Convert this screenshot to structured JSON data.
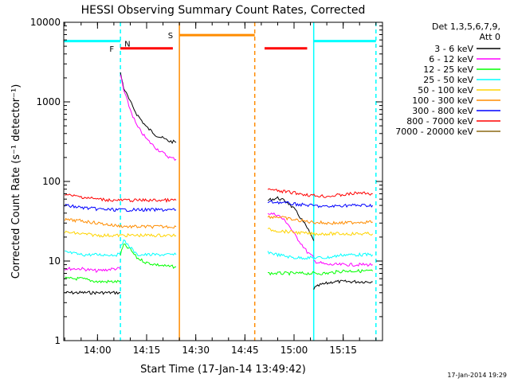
{
  "chart_data": {
    "type": "line",
    "title": "HESSI Observing Summary Count Rates, Corrected",
    "xlabel": "Start Time (17-Jan-14 13:49:42)",
    "ylabel": "Corrected Count Rate (s⁻¹ detector⁻¹)",
    "y_scale": "log",
    "ylim": [
      1,
      10000
    ],
    "xlim": [
      "13:49:42",
      "15:27:00"
    ],
    "x_ticks": [
      "14:00",
      "14:15",
      "14:30",
      "14:45",
      "15:00",
      "15:15"
    ],
    "y_ticks": [
      "1",
      "10",
      "100",
      "1000",
      "10000"
    ],
    "legend_header": [
      "Det 1,3,5,6,7,9,",
      "Att 0"
    ],
    "legend_position": "right",
    "timestamp": "17-Jan-2014 19:29",
    "series": [
      {
        "name": "3 - 6 keV",
        "color": "#000000",
        "segments": [
          {
            "x": [
              "13:50",
              "13:55",
              "14:00",
              "14:05",
              "14:07"
            ],
            "y": [
              4,
              4,
              4,
              4,
              4
            ]
          },
          {
            "x": [
              "14:07",
              "14:08",
              "14:10",
              "14:12",
              "14:15",
              "14:18",
              "14:22",
              "14:24"
            ],
            "y": [
              2300,
              1500,
              1000,
              700,
              480,
              380,
              320,
              310
            ]
          },
          {
            "x": [
              "14:52",
              "14:55",
              "14:58",
              "15:00",
              "15:02",
              "15:04",
              "15:06"
            ],
            "y": [
              58,
              62,
              55,
              45,
              35,
              26,
              18
            ]
          },
          {
            "x": [
              "15:06",
              "15:08",
              "15:12",
              "15:16",
              "15:20",
              "15:24"
            ],
            "y": [
              4.5,
              5,
              5.5,
              5.5,
              5.5,
              5.5
            ]
          }
        ]
      },
      {
        "name": "6 - 12 keV",
        "color": "#ff00ff",
        "segments": [
          {
            "x": [
              "13:50",
              "13:55",
              "14:00",
              "14:05",
              "14:07"
            ],
            "y": [
              8,
              8,
              7.5,
              8,
              8
            ]
          },
          {
            "x": [
              "14:07",
              "14:08",
              "14:10",
              "14:12",
              "14:15",
              "14:18",
              "14:22",
              "14:24"
            ],
            "y": [
              2200,
              1400,
              800,
              500,
              340,
              260,
              200,
              190
            ]
          },
          {
            "x": [
              "14:52",
              "14:55",
              "14:58",
              "15:00",
              "15:02",
              "15:04",
              "15:06"
            ],
            "y": [
              40,
              38,
              30,
              22,
              17,
              13,
              11
            ]
          },
          {
            "x": [
              "15:06",
              "15:10",
              "15:15",
              "15:20",
              "15:24"
            ],
            "y": [
              10,
              9,
              9,
              9,
              9
            ]
          }
        ]
      },
      {
        "name": "12 - 25 keV",
        "color": "#00ff00",
        "segments": [
          {
            "x": [
              "13:50",
              "13:55",
              "14:00",
              "14:05",
              "14:07"
            ],
            "y": [
              6,
              6,
              5.5,
              5.5,
              5.5
            ]
          },
          {
            "x": [
              "14:07",
              "14:08",
              "14:10",
              "14:12",
              "14:15",
              "14:18",
              "14:22",
              "14:24"
            ],
            "y": [
              12,
              16,
              14,
              11,
              9.5,
              9,
              8.5,
              8.5
            ]
          },
          {
            "x": [
              "14:52",
              "14:55",
              "15:00",
              "15:05",
              "15:10",
              "15:15",
              "15:20",
              "15:24"
            ],
            "y": [
              7,
              7,
              7,
              7,
              7,
              7.5,
              7.5,
              7.5
            ]
          }
        ]
      },
      {
        "name": "25 - 50 keV",
        "color": "#00ffff",
        "segments": [
          {
            "x": [
              "13:50",
              "13:55",
              "14:00",
              "14:05",
              "14:07"
            ],
            "y": [
              13,
              12,
              12,
              12,
              12
            ]
          },
          {
            "x": [
              "14:07",
              "14:08",
              "14:10",
              "14:12",
              "14:15",
              "14:18",
              "14:22",
              "14:24"
            ],
            "y": [
              16,
              18,
              15,
              12,
              12,
              12,
              12,
              12
            ]
          },
          {
            "x": [
              "14:52",
              "14:55",
              "15:00",
              "15:05",
              "15:10",
              "15:15",
              "15:20",
              "15:24"
            ],
            "y": [
              13,
              12,
              11,
              11,
              11,
              12,
              12,
              12
            ]
          }
        ]
      },
      {
        "name": "50 - 100 keV",
        "color": "#ffd400",
        "segments": [
          {
            "x": [
              "13:50",
              "13:55",
              "14:00",
              "14:05",
              "14:10",
              "14:15",
              "14:20",
              "14:24"
            ],
            "y": [
              23,
              22,
              21,
              21,
              21,
              21,
              21,
              21
            ]
          },
          {
            "x": [
              "14:52",
              "14:55",
              "15:00",
              "15:05",
              "15:10",
              "15:15",
              "15:20",
              "15:24"
            ],
            "y": [
              25,
              24,
              23,
              22,
              22,
              22,
              22,
              22
            ]
          }
        ]
      },
      {
        "name": "100 - 300 keV",
        "color": "#ff8c00",
        "segments": [
          {
            "x": [
              "13:50",
              "13:55",
              "14:00",
              "14:05",
              "14:10",
              "14:15",
              "14:20",
              "14:24"
            ],
            "y": [
              33,
              32,
              30,
              28,
              27,
              27,
              27,
              27
            ]
          },
          {
            "x": [
              "14:52",
              "14:55",
              "15:00",
              "15:05",
              "15:10",
              "15:15",
              "15:20",
              "15:24"
            ],
            "y": [
              36,
              36,
              33,
              31,
              30,
              30,
              31,
              31
            ]
          }
        ]
      },
      {
        "name": "300 - 800 keV",
        "color": "#0000ff",
        "segments": [
          {
            "x": [
              "13:50",
              "13:55",
              "14:00",
              "14:05",
              "14:10",
              "14:15",
              "14:20",
              "14:24"
            ],
            "y": [
              50,
              47,
              45,
              44,
              44,
              44,
              44,
              44
            ]
          },
          {
            "x": [
              "14:52",
              "14:55",
              "15:00",
              "15:05",
              "15:10",
              "15:15",
              "15:20",
              "15:24"
            ],
            "y": [
              55,
              55,
              52,
              50,
              48,
              50,
              50,
              50
            ]
          }
        ]
      },
      {
        "name": "800 - 7000 keV",
        "color": "#ff0000",
        "segments": [
          {
            "x": [
              "13:50",
              "13:55",
              "14:00",
              "14:05",
              "14:10",
              "14:15",
              "14:20",
              "14:24"
            ],
            "y": [
              68,
              64,
              60,
              58,
              58,
              58,
              58,
              58
            ]
          },
          {
            "x": [
              "14:52",
              "14:55",
              "15:00",
              "15:05",
              "15:10",
              "15:15",
              "15:20",
              "15:24"
            ],
            "y": [
              80,
              76,
              72,
              67,
              65,
              68,
              72,
              70
            ]
          }
        ]
      },
      {
        "name": "7000 - 20000 keV",
        "color": "#8b6914",
        "segments": []
      }
    ],
    "annotations": [
      {
        "label": "N",
        "color": "#00ffff",
        "kind": "night",
        "spans": [
          [
            "13:49:42",
            "14:07"
          ],
          [
            "15:06",
            "15:25"
          ]
        ],
        "level": 5800
      },
      {
        "label": "F",
        "color": "#ff0000",
        "kind": "flare",
        "spans": [
          [
            "14:07",
            "14:23"
          ],
          [
            "14:51",
            "15:04"
          ]
        ],
        "level": 4700
      },
      {
        "label": "S",
        "color": "#ff8c00",
        "kind": "saa",
        "spans": [
          [
            "14:25",
            "14:48"
          ]
        ],
        "level": 6900
      }
    ],
    "vlines": [
      {
        "x": "14:07",
        "color": "#00ffff",
        "dash": true
      },
      {
        "x": "15:06",
        "color": "#00ffff",
        "dash": false
      },
      {
        "x": "15:25",
        "color": "#00ffff",
        "dash": true
      },
      {
        "x": "14:25",
        "color": "#ff8c00",
        "dash": false
      },
      {
        "x": "14:48",
        "color": "#ff8c00",
        "dash": true
      }
    ]
  }
}
